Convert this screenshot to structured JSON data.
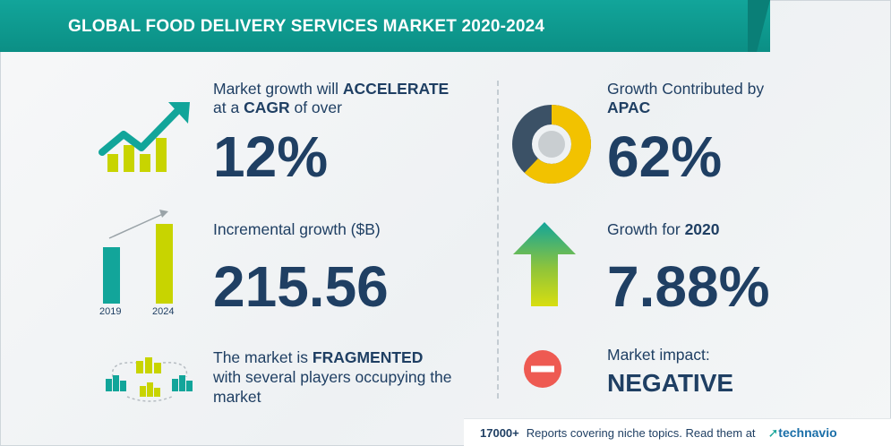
{
  "header": {
    "title": "GLOBAL FOOD DELIVERY SERVICES MARKET 2020-2024"
  },
  "cagr": {
    "line1_prefix": "Market growth will ",
    "line1_bold": "ACCELERATE",
    "line2_prefix": "at a ",
    "line2_bold": "CAGR",
    "line2_suffix": " of over",
    "value": "12%"
  },
  "incremental": {
    "label": "Incremental growth ($B)",
    "value": "215.56",
    "chart": {
      "year_start": "2019",
      "year_end": "2024"
    }
  },
  "market": {
    "line1_prefix": "The market is ",
    "line1_bold": "FRAGMENTED",
    "line2": "with several players occupying the",
    "line3": "market"
  },
  "apac": {
    "line1": "Growth Contributed by",
    "line2_bold": "APAC",
    "value": "62%",
    "share_fraction": 0.62
  },
  "growth2020": {
    "label_prefix": "Growth for ",
    "label_bold": "2020",
    "value": "7.88%"
  },
  "impact": {
    "label": "Market impact:",
    "value": "NEGATIVE"
  },
  "footer": {
    "count": "17000+",
    "text": "Reports covering niche topics. Read them at",
    "brand": "technavio"
  },
  "colors": {
    "teal": "#12a59a",
    "navy": "#1f3f63",
    "yellow_green": "#c8d400",
    "amber": "#f2c200",
    "slate": "#3b5166",
    "gray": "#9aa3a8",
    "red": "#ee5a52"
  }
}
